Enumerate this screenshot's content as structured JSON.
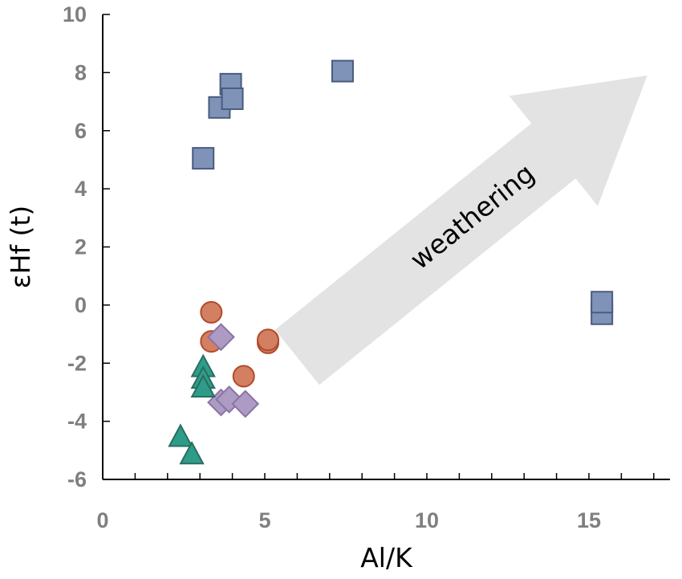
{
  "chart_data": {
    "type": "scatter",
    "title": "",
    "xlabel": "Al/K",
    "ylabel": "εHf (t)",
    "xlim": [
      0,
      17.5
    ],
    "ylim": [
      -6,
      10
    ],
    "x_major_ticks": [
      0,
      5,
      10,
      15
    ],
    "x_minor_step": 1,
    "y_ticks": [
      -6,
      -4,
      -2,
      0,
      2,
      4,
      6,
      8,
      10
    ],
    "grid": false,
    "legend": "none",
    "series": [
      {
        "marker": "square",
        "color": "#7f93b8",
        "edge_color": "#4a5a7e",
        "points": [
          {
            "x": 3.1,
            "y": 5.05
          },
          {
            "x": 3.6,
            "y": 6.8
          },
          {
            "x": 3.95,
            "y": 7.6
          },
          {
            "x": 4.0,
            "y": 7.1
          },
          {
            "x": 7.4,
            "y": 8.05
          },
          {
            "x": 15.4,
            "y": -0.3
          },
          {
            "x": 15.4,
            "y": 0.1
          }
        ]
      },
      {
        "marker": "circle",
        "color": "#d27f62",
        "edge_color": "#b44a2c",
        "points": [
          {
            "x": 3.35,
            "y": -0.25
          },
          {
            "x": 3.35,
            "y": -1.25
          },
          {
            "x": 4.35,
            "y": -2.45
          },
          {
            "x": 5.1,
            "y": -1.3
          },
          {
            "x": 5.1,
            "y": -1.2
          }
        ]
      },
      {
        "marker": "diamond",
        "color": "#ae9bc3",
        "edge_color": "#8a73a6",
        "points": [
          {
            "x": 3.65,
            "y": -1.1
          },
          {
            "x": 3.65,
            "y": -3.35
          },
          {
            "x": 3.9,
            "y": -3.25
          },
          {
            "x": 4.4,
            "y": -3.4
          }
        ]
      },
      {
        "marker": "triangle",
        "color": "#2e9c8a",
        "edge_color": "#2a6e5e",
        "points": [
          {
            "x": 3.1,
            "y": -2.15
          },
          {
            "x": 3.1,
            "y": -2.55
          },
          {
            "x": 3.1,
            "y": -2.85
          },
          {
            "x": 2.4,
            "y": -4.55
          },
          {
            "x": 2.75,
            "y": -5.15
          }
        ]
      }
    ],
    "annotations": [
      {
        "text": "weathering",
        "type": "arrow",
        "color": "#e3e3e3",
        "from": {
          "x": 6.0,
          "y": -1.8
        },
        "to": {
          "x": 16.8,
          "y": 7.9
        }
      }
    ]
  }
}
